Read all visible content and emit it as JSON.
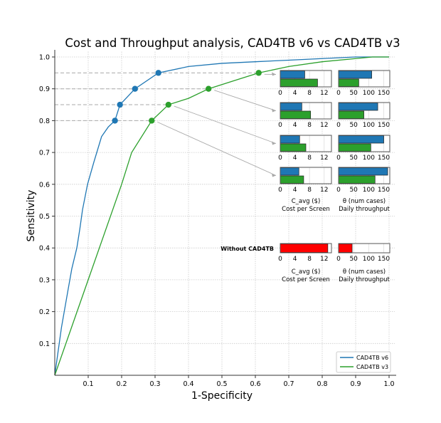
{
  "chart_data": {
    "type": "line",
    "title": "Cost and Throughput analysis, CAD4TB v6 vs CAD4TB v3",
    "xlabel": "1-Specificity",
    "ylabel": "Sensitivity",
    "xlim": [
      0,
      1
    ],
    "ylim": [
      0,
      1
    ],
    "grid": true,
    "legend_position": "bottom-right",
    "x_ticks": [
      "0.1",
      "0.2",
      "0.3",
      "0.4",
      "0.5",
      "0.6",
      "0.7",
      "0.8",
      "0.9",
      "1.0"
    ],
    "y_ticks": [
      "0.1",
      "0.2",
      "0.3",
      "0.4",
      "0.5",
      "0.6",
      "0.7",
      "0.8",
      "0.9",
      "1.0"
    ],
    "series": [
      {
        "name": "CAD4TB v6",
        "color": "#1f77b4",
        "x": [
          0,
          0.02,
          0.04,
          0.051,
          0.066,
          0.075,
          0.083,
          0.098,
          0.117,
          0.14,
          0.16,
          0.18,
          0.195,
          0.24,
          0.31,
          0.4,
          0.5,
          0.6,
          0.7,
          0.8,
          0.9,
          1.0
        ],
        "y": [
          0,
          0.15,
          0.27,
          0.335,
          0.4,
          0.46,
          0.52,
          0.6,
          0.67,
          0.75,
          0.78,
          0.8,
          0.85,
          0.9,
          0.95,
          0.97,
          0.98,
          0.985,
          0.99,
          0.995,
          1.0,
          1.0
        ],
        "operating_points": {
          "x": [
            0.18,
            0.195,
            0.24,
            0.31
          ],
          "y": [
            0.8,
            0.85,
            0.9,
            0.95
          ]
        }
      },
      {
        "name": "CAD4TB v3",
        "color": "#2ca02c",
        "x": [
          0,
          0.1,
          0.2,
          0.23,
          0.29,
          0.34,
          0.4,
          0.46,
          0.55,
          0.61,
          0.7,
          0.8,
          0.9,
          0.95,
          1.0
        ],
        "y": [
          0,
          0.3,
          0.6,
          0.7,
          0.8,
          0.85,
          0.87,
          0.9,
          0.93,
          0.95,
          0.97,
          0.985,
          0.995,
          1.0,
          1.0
        ],
        "operating_points": {
          "x": [
            0.29,
            0.34,
            0.46,
            0.61
          ],
          "y": [
            0.8,
            0.85,
            0.9,
            0.95
          ]
        }
      }
    ],
    "insets": {
      "cost_axis": {
        "xlim": [
          0,
          14
        ],
        "ticks": [
          "0",
          "4",
          "8",
          "12"
        ],
        "label": "C_avg ($)",
        "sublabel": "Cost per Screen"
      },
      "throughput_axis": {
        "xlim": [
          0,
          170
        ],
        "ticks": [
          "0",
          "50",
          "100",
          "150"
        ],
        "label": "θ (num cases)",
        "sublabel": "Daily throughput"
      },
      "rows": [
        {
          "sensitivity": 0.95,
          "cost": {
            "v6": 6.7,
            "v3": 10.2
          },
          "throughput": {
            "v6": 110,
            "v3": 67
          }
        },
        {
          "sensitivity": 0.9,
          "cost": {
            "v6": 5.9,
            "v3": 8.3
          },
          "throughput": {
            "v6": 130,
            "v3": 84
          }
        },
        {
          "sensitivity": 0.85,
          "cost": {
            "v6": 5.3,
            "v3": 7.0
          },
          "throughput": {
            "v6": 150,
            "v3": 107
          }
        },
        {
          "sensitivity": 0.8,
          "cost": {
            "v6": 5.1,
            "v3": 6.4
          },
          "throughput": {
            "v6": 163,
            "v3": 121
          }
        }
      ],
      "baseline": {
        "label": "Without CAD4TB",
        "color": "#ff0000",
        "cost": 13.0,
        "throughput": 45
      }
    }
  }
}
